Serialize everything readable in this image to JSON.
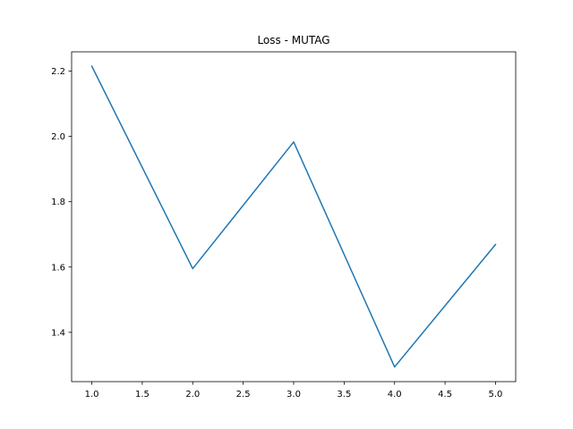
{
  "chart_data": {
    "type": "line",
    "title": "Loss - MUTAG",
    "xlabel": "",
    "ylabel": "",
    "xlim": [
      0.8,
      5.2
    ],
    "ylim": [
      1.249,
      2.259
    ],
    "grid": false,
    "x": [
      1.0,
      2.0,
      3.0,
      4.0,
      5.0
    ],
    "series": [
      {
        "values": [
          2.215,
          1.595,
          1.983,
          1.294,
          1.669
        ],
        "color": "#1f77b4"
      }
    ],
    "xticks": [
      1.0,
      1.5,
      2.0,
      2.5,
      3.0,
      3.5,
      4.0,
      4.5,
      5.0
    ],
    "xtick_labels": [
      "1.0",
      "1.5",
      "2.0",
      "2.5",
      "3.0",
      "3.5",
      "4.0",
      "4.5",
      "5.0"
    ],
    "yticks": [
      1.4,
      1.6,
      1.8,
      2.0,
      2.2
    ],
    "ytick_labels": [
      "1.4",
      "1.6",
      "1.8",
      "2.0",
      "2.2"
    ]
  }
}
